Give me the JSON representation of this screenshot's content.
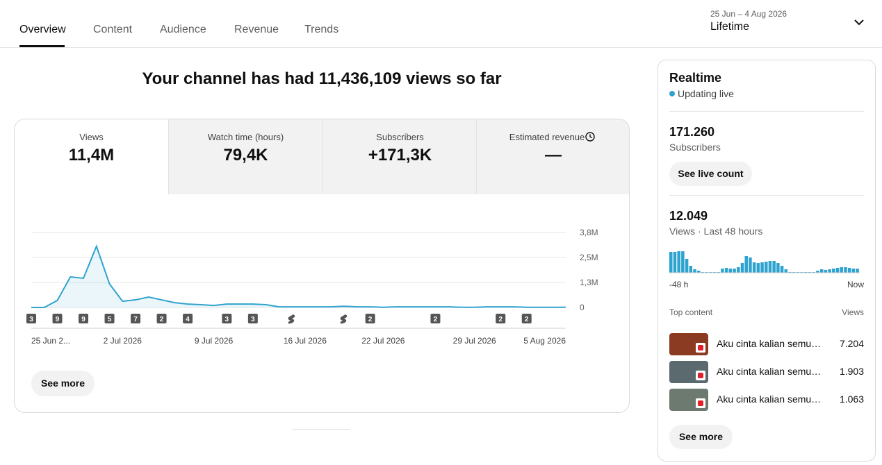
{
  "tabs": [
    "Overview",
    "Content",
    "Audience",
    "Revenue",
    "Trends"
  ],
  "date_range": {
    "range": "25 Jun – 4 Aug 2026",
    "label": "Lifetime"
  },
  "headline": "Your channel has had 11,436,109 views so far",
  "metrics": [
    {
      "label": "Views",
      "value": "11,4M"
    },
    {
      "label": "Watch time (hours)",
      "value": "79,4K"
    },
    {
      "label": "Subscribers",
      "value": "+171,3K"
    },
    {
      "label": "Estimated revenue",
      "value": "—"
    }
  ],
  "chart_data": {
    "type": "line",
    "color": "#2ea3cf",
    "grid": true,
    "categories": [
      "25 Jun 2...",
      null,
      null,
      null,
      null,
      null,
      null,
      "2 Jul 2026",
      null,
      null,
      null,
      null,
      null,
      null,
      "9 Jul 2026",
      null,
      null,
      null,
      null,
      null,
      null,
      "16 Jul 2026",
      null,
      null,
      null,
      null,
      null,
      "22 Jul 2026",
      null,
      null,
      null,
      null,
      null,
      null,
      "29 Jul 2026",
      null,
      null,
      null,
      null,
      null,
      null,
      "5 Aug 2026"
    ],
    "values": [
      0,
      0,
      350000,
      1530000,
      1460000,
      3060000,
      1180000,
      310000,
      380000,
      520000,
      380000,
      240000,
      170000,
      140000,
      100000,
      170000,
      170000,
      170000,
      140000,
      30000,
      30000,
      30000,
      30000,
      30000,
      60000,
      30000,
      30000,
      10000,
      30000,
      30000,
      30000,
      30000,
      30000,
      10000,
      10000,
      30000,
      30000,
      30000,
      10000,
      10000,
      10000,
      10000
    ],
    "uploads": [
      3,
      null,
      9,
      null,
      9,
      null,
      5,
      null,
      7,
      null,
      2,
      null,
      4,
      null,
      null,
      3,
      null,
      3,
      null,
      null,
      null,
      null,
      null,
      null,
      null,
      null,
      2,
      null,
      null,
      null,
      null,
      2,
      null,
      null,
      null,
      null,
      2,
      null,
      2,
      null,
      null,
      null
    ],
    "ylim": [
      0,
      3750000
    ],
    "yticks": [
      {
        "value": 0,
        "label": "0"
      },
      {
        "value": 1250000,
        "label": "1,3M"
      },
      {
        "value": 2500000,
        "label": "2,5M"
      },
      {
        "value": 3750000,
        "label": "3,8M"
      }
    ]
  },
  "see_more": "See more",
  "realtime": {
    "title": "Realtime",
    "status": "Updating live",
    "subscribers": "171.260",
    "subscribers_label": "Subscribers",
    "live_button": "See live count",
    "views": "12.049",
    "views_label": "Views · Last 48 hours",
    "views_chart": {
      "type": "bar",
      "color": "#2ea3cf",
      "values": [
        600,
        600,
        620,
        620,
        400,
        200,
        100,
        60,
        20,
        20,
        20,
        20,
        20,
        120,
        140,
        120,
        120,
        160,
        280,
        480,
        440,
        300,
        280,
        300,
        320,
        340,
        340,
        280,
        200,
        100,
        20,
        20,
        20,
        20,
        20,
        20,
        20,
        60,
        100,
        80,
        100,
        120,
        140,
        160,
        160,
        140,
        120,
        120
      ],
      "start_label": "-48 h",
      "end_label": "Now"
    },
    "top_content_label": "Top content",
    "views_header": "Views",
    "top_content": [
      {
        "title": "Aku cinta kalian semu…",
        "views": "7.204"
      },
      {
        "title": "Aku cinta kalian semu…",
        "views": "1.903"
      },
      {
        "title": "Aku cinta kalian semu…",
        "views": "1.063"
      }
    ],
    "see_more": "See more"
  }
}
